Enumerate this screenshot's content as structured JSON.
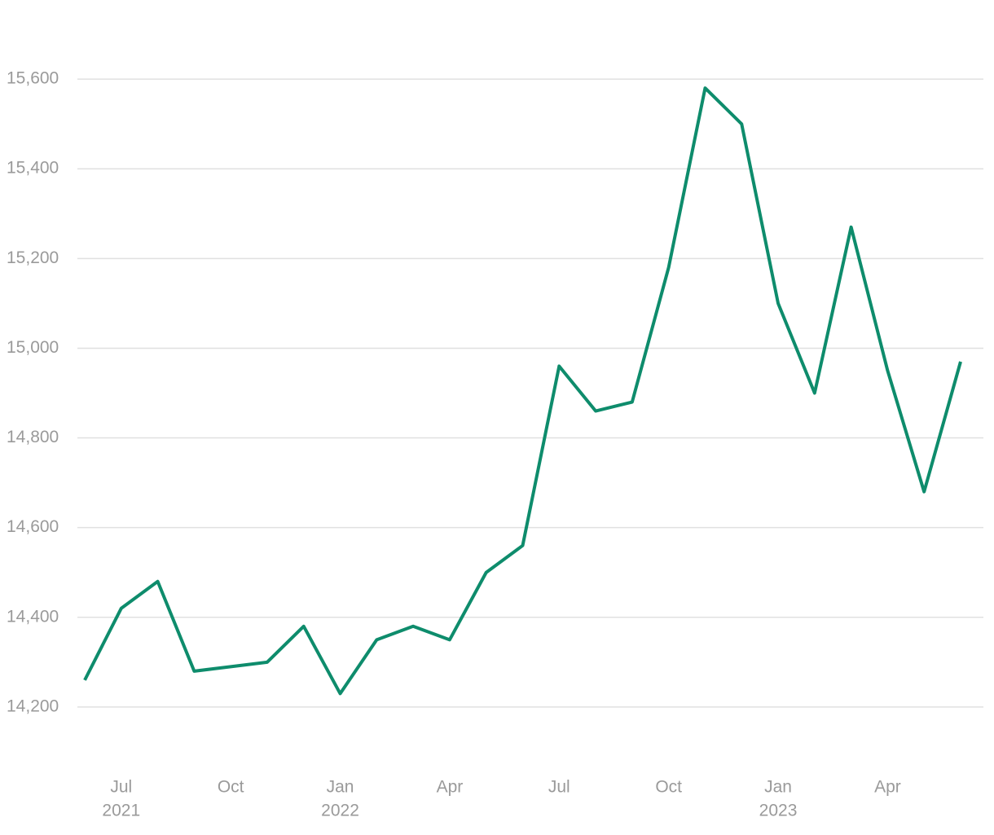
{
  "chart_data": {
    "type": "line",
    "x": [
      "2021-06",
      "2021-07",
      "2021-08",
      "2021-09",
      "2021-10",
      "2021-11",
      "2021-12",
      "2022-01",
      "2022-02",
      "2022-03",
      "2022-04",
      "2022-05",
      "2022-06",
      "2022-07",
      "2022-08",
      "2022-09",
      "2022-10",
      "2022-11",
      "2022-12",
      "2023-01",
      "2023-02",
      "2023-03",
      "2023-04",
      "2023-05",
      "2023-06"
    ],
    "series": [
      {
        "color": "#0e8c6c",
        "values": [
          14260,
          14420,
          14480,
          14280,
          14290,
          14300,
          14380,
          14230,
          14350,
          14380,
          14350,
          14500,
          14560,
          14960,
          14860,
          14880,
          15180,
          15580,
          15500,
          15100,
          14900,
          15270,
          14950,
          14680,
          14970
        ]
      }
    ],
    "ylim": [
      14060,
      15740
    ],
    "yticks": [
      {
        "value": 14200,
        "label": "14,200"
      },
      {
        "value": 14400,
        "label": "14,400"
      },
      {
        "value": 14600,
        "label": "14,600"
      },
      {
        "value": 14800,
        "label": "14,800"
      },
      {
        "value": 15000,
        "label": "15,000"
      },
      {
        "value": 15200,
        "label": "15,200"
      },
      {
        "value": 15400,
        "label": "15,400"
      },
      {
        "value": 15600,
        "label": "15,600"
      }
    ],
    "xticks": [
      {
        "value": "2021-07",
        "label": "Jul",
        "year": "2021"
      },
      {
        "value": "2021-10",
        "label": "Oct"
      },
      {
        "value": "2022-01",
        "label": "Jan",
        "year": "2022"
      },
      {
        "value": "2022-04",
        "label": "Apr"
      },
      {
        "value": "2022-07",
        "label": "Jul"
      },
      {
        "value": "2022-10",
        "label": "Oct"
      },
      {
        "value": "2023-01",
        "label": "Jan",
        "year": "2023"
      },
      {
        "value": "2023-04",
        "label": "Apr"
      }
    ],
    "grid": true
  }
}
